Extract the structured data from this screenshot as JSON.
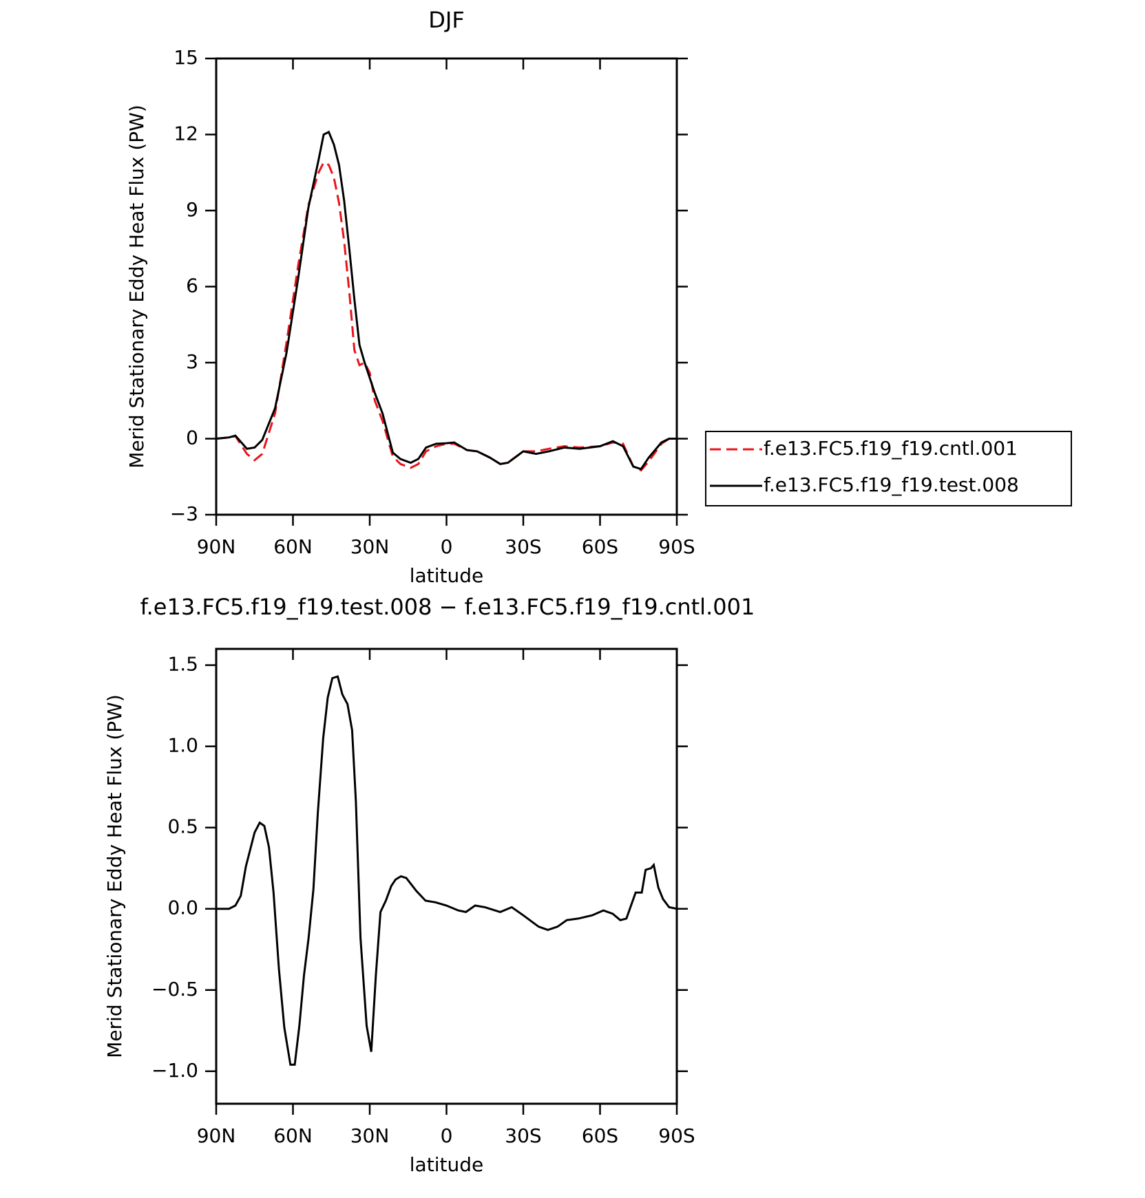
{
  "chart_data": [
    {
      "type": "line",
      "title": "DJF",
      "xlabel": "latitude",
      "ylabel": "Merid Stationary Eddy Heat Flux (PW)",
      "x": [
        90,
        85,
        82.5,
        78,
        75,
        72,
        67,
        62.5,
        58,
        54,
        50,
        48,
        46,
        44,
        42,
        40,
        38,
        36,
        34,
        32,
        30,
        28,
        25,
        21,
        18,
        14,
        11,
        8,
        4,
        0,
        -3,
        -8,
        -12,
        -17,
        -21,
        -24,
        -30,
        -35,
        -40,
        -46,
        -52,
        -60,
        -65,
        -69,
        -73,
        -76,
        -79,
        -84,
        -87,
        -90
      ],
      "series": [
        {
          "name": "f.e13.FC5.f19_f19.cntl.001",
          "color": "#e8141b",
          "dash": true,
          "values": [
            0,
            0.05,
            0.1,
            -0.6,
            -0.85,
            -0.6,
            1.0,
            3.8,
            6.8,
            9.2,
            10.5,
            10.9,
            10.8,
            10.3,
            9.3,
            7.8,
            5.8,
            3.5,
            2.9,
            3.0,
            2.6,
            1.5,
            0.7,
            -0.7,
            -1.0,
            -1.15,
            -1.0,
            -0.5,
            -0.3,
            -0.2,
            -0.2,
            -0.45,
            -0.5,
            -0.75,
            -1.0,
            -0.95,
            -0.5,
            -0.5,
            -0.4,
            -0.3,
            -0.35,
            -0.3,
            -0.15,
            -0.2,
            -1.1,
            -1.25,
            -0.9,
            -0.2,
            0,
            0
          ]
        },
        {
          "name": "f.e13.FC5.f19_f19.test.008",
          "color": "#000000",
          "dash": false,
          "values": [
            0,
            0.05,
            0.12,
            -0.4,
            -0.35,
            -0.05,
            1.2,
            3.4,
            6.3,
            9.1,
            11.0,
            12.0,
            12.1,
            11.6,
            10.8,
            9.4,
            7.5,
            5.5,
            3.7,
            3.0,
            2.4,
            1.8,
            1.0,
            -0.55,
            -0.8,
            -0.95,
            -0.8,
            -0.35,
            -0.2,
            -0.18,
            -0.15,
            -0.45,
            -0.5,
            -0.75,
            -1.0,
            -0.95,
            -0.5,
            -0.6,
            -0.5,
            -0.35,
            -0.4,
            -0.3,
            -0.1,
            -0.3,
            -1.1,
            -1.2,
            -0.75,
            -0.15,
            0,
            0
          ]
        }
      ],
      "xlim": [
        90,
        -90
      ],
      "xticks": [
        {
          "value": 90,
          "label": "90N"
        },
        {
          "value": 60,
          "label": "60N"
        },
        {
          "value": 30,
          "label": "30N"
        },
        0,
        {
          "value": -30,
          "label": "30S"
        },
        {
          "value": -60,
          "label": "60S"
        },
        {
          "value": -90,
          "label": "90S"
        }
      ],
      "ylim": [
        -3,
        15
      ],
      "yticks": [
        {
          "value": -3,
          "label": "−3"
        },
        0,
        3,
        6,
        9,
        12,
        15
      ],
      "legend": "outside right"
    },
    {
      "type": "line",
      "title": "f.e13.FC5.f19_f19.test.008 − f.e13.FC5.f19_f19.cntl.001",
      "xlabel": "latitude",
      "ylabel": "Merid Stationary Eddy Heat Flux (PW)",
      "x": [
        90,
        85,
        82.5,
        80.4,
        78.4,
        75,
        73,
        71.2,
        69.4,
        67.6,
        65.5,
        63.4,
        61,
        59.3,
        57.5,
        55.7,
        53.9,
        52,
        50.3,
        48.2,
        46.4,
        44.6,
        42.5,
        40.7,
        38.7,
        36.9,
        35.4,
        33.6,
        31.2,
        29.4,
        27.6,
        25.8,
        23.7,
        21.6,
        19.9,
        17.8,
        15.7,
        11.8,
        8.2,
        4.3,
        0,
        -4.6,
        -7.6,
        -11.2,
        -15,
        -21,
        -25.5,
        -30,
        -36,
        -39.6,
        -43.4,
        -47,
        -51.5,
        -56.9,
        -61.3,
        -64.9,
        -67.9,
        -70.3,
        -73.9,
        -76.3,
        -77.8,
        -79.9,
        -81,
        -82.8,
        -84.6,
        -87,
        -90
      ],
      "series": [
        {
          "color": "#000000",
          "values": [
            0,
            0,
            0.02,
            0.08,
            0.26,
            0.47,
            0.53,
            0.51,
            0.38,
            0.1,
            -0.37,
            -0.73,
            -0.96,
            -0.96,
            -0.72,
            -0.41,
            -0.18,
            0.12,
            0.59,
            1.05,
            1.3,
            1.42,
            1.43,
            1.32,
            1.26,
            1.1,
            0.66,
            -0.18,
            -0.72,
            -0.88,
            -0.41,
            -0.02,
            0.05,
            0.14,
            0.18,
            0.2,
            0.19,
            0.11,
            0.05,
            0.04,
            0.02,
            -0.01,
            -0.02,
            0.02,
            0.01,
            -0.02,
            0.01,
            -0.04,
            -0.11,
            -0.13,
            -0.11,
            -0.07,
            -0.06,
            -0.04,
            -0.01,
            -0.03,
            -0.07,
            -0.06,
            0.1,
            0.1,
            0.24,
            0.25,
            0.27,
            0.13,
            0.06,
            0.01,
            0
          ]
        }
      ],
      "xlim": [
        90,
        -90
      ],
      "xticks": [
        {
          "value": 90,
          "label": "90N"
        },
        {
          "value": 60,
          "label": "60N"
        },
        {
          "value": 30,
          "label": "30N"
        },
        0,
        {
          "value": -30,
          "label": "30S"
        },
        {
          "value": -60,
          "label": "60S"
        },
        {
          "value": -90,
          "label": "90S"
        }
      ],
      "ylim": [
        -1.2,
        1.6
      ],
      "yticks": [
        {
          "value": -1,
          "label": "−1.0"
        },
        {
          "value": -0.5,
          "label": "−0.5"
        },
        {
          "value": 0,
          "label": "0.0"
        },
        0.5,
        {
          "value": 1,
          "label": "1.0"
        },
        1.5
      ]
    }
  ]
}
